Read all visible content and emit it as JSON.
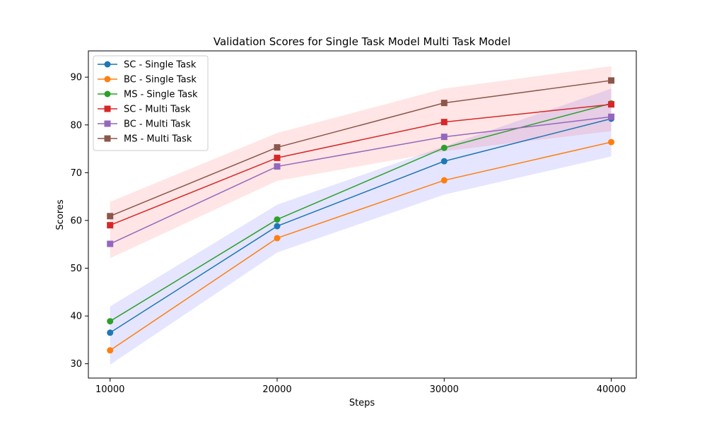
{
  "chart_data": {
    "type": "line",
    "title": "Validation Scores for Single Task Model Multi Task Model",
    "xlabel": "Steps",
    "ylabel": "Scores",
    "x": [
      10000,
      20000,
      30000,
      40000
    ],
    "xlim": [
      8700,
      41500
    ],
    "ylim": [
      27,
      95.5
    ],
    "xticks": [
      10000,
      20000,
      30000,
      40000
    ],
    "yticks": [
      30,
      40,
      50,
      60,
      70,
      80,
      90
    ],
    "legend_position": "upper-left",
    "series": [
      {
        "name": "SC - Single Task",
        "values": [
          36.5,
          58.8,
          72.4,
          81.3
        ],
        "color": "#1f77b4",
        "marker": "circle"
      },
      {
        "name": "BC - Single Task",
        "values": [
          32.8,
          56.3,
          68.4,
          76.4
        ],
        "color": "#ff7f0e",
        "marker": "circle"
      },
      {
        "name": "MS - Single Task",
        "values": [
          38.9,
          60.2,
          75.2,
          84.5
        ],
        "color": "#2ca02c",
        "marker": "circle"
      },
      {
        "name": "SC - Multi Task",
        "values": [
          59.0,
          73.1,
          80.6,
          84.3
        ],
        "color": "#d62728",
        "marker": "square"
      },
      {
        "name": "BC - Multi Task",
        "values": [
          55.1,
          71.3,
          77.5,
          81.7
        ],
        "color": "#9467bd",
        "marker": "square"
      },
      {
        "name": "MS - Multi Task",
        "values": [
          60.9,
          75.3,
          84.6,
          89.3
        ],
        "color": "#8c564b",
        "marker": "square"
      }
    ],
    "bands": [
      {
        "name": "single-task-band",
        "lower": [
          29.8,
          53.3,
          65.4,
          73.4
        ],
        "upper": [
          42.0,
          63.3,
          75.5,
          87.6
        ],
        "color": "#0000ff",
        "opacity": 0.1
      },
      {
        "name": "multi-task-band",
        "lower": [
          52.1,
          68.3,
          74.5,
          78.7
        ],
        "upper": [
          63.9,
          78.3,
          87.6,
          92.3
        ],
        "color": "#ff0000",
        "opacity": 0.1
      }
    ]
  }
}
